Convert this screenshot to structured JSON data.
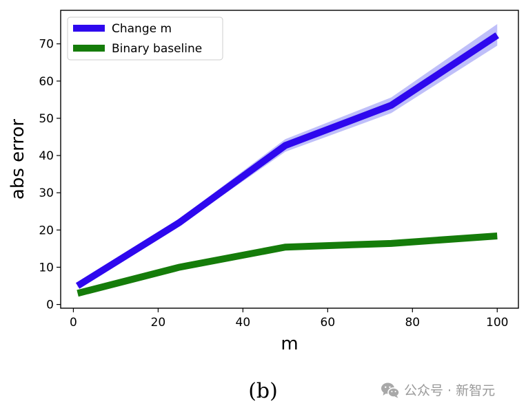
{
  "caption": "(b)",
  "watermark": "公众号 · 新智元",
  "chart_data": {
    "type": "line",
    "xlabel": "m",
    "ylabel": "abs error",
    "xlim": [
      -3,
      105
    ],
    "ylim": [
      -1,
      79
    ],
    "xticks": [
      0,
      20,
      40,
      60,
      80,
      100
    ],
    "yticks": [
      0,
      10,
      20,
      30,
      40,
      50,
      60,
      70
    ],
    "grid": false,
    "legend_position": "top-left",
    "series": [
      {
        "name": "Change m",
        "color": "#2e08ee",
        "band_color": "#a9a9f7",
        "x": [
          1,
          25,
          50,
          75,
          100
        ],
        "y": [
          5,
          22,
          42.7,
          53.5,
          72.3
        ],
        "lower": [
          4.5,
          21.2,
          41,
          51.4,
          69.5
        ],
        "upper": [
          5.5,
          23,
          44.4,
          55.6,
          75.3
        ]
      },
      {
        "name": "Binary baseline",
        "color": "#157c0a",
        "x": [
          1,
          25,
          50,
          75,
          100
        ],
        "y": [
          3,
          10,
          15.4,
          16.4,
          18.4
        ]
      }
    ]
  }
}
